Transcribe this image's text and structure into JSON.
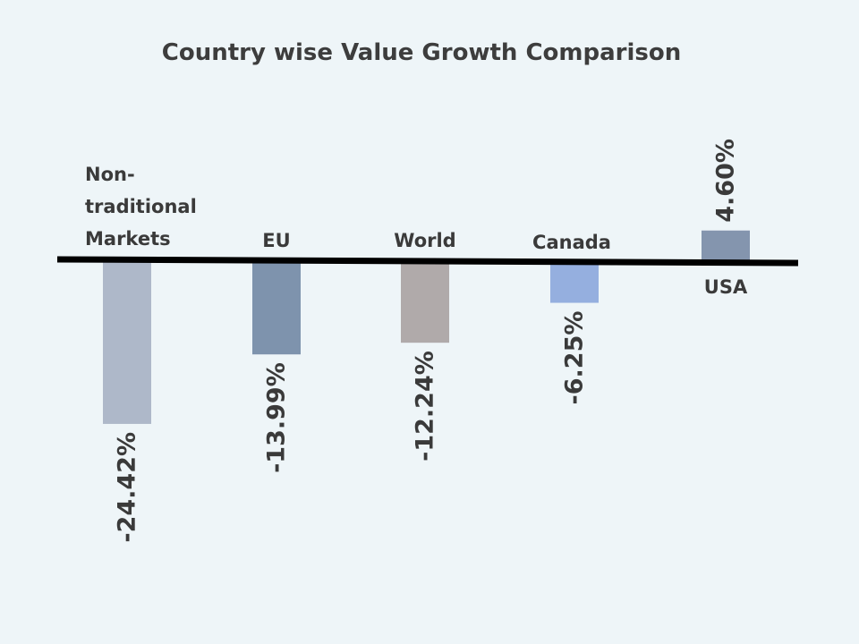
{
  "chart_data": {
    "type": "bar",
    "title": "Country wise Value Growth Comparison",
    "categories": [
      [
        "Non-",
        "traditional",
        "Markets"
      ],
      [
        "EU"
      ],
      [
        "World"
      ],
      [
        "Canada"
      ],
      [
        "USA"
      ]
    ],
    "values": [
      -24.42,
      -13.99,
      -12.24,
      -6.25,
      4.6
    ],
    "value_labels": [
      "-24.42%",
      "-13.99%",
      "-12.24%",
      "-6.25%",
      "4.60%"
    ],
    "colors": [
      "#aeb8c9",
      "#7e93ad",
      "#b0aaaa",
      "#95afdf",
      "#8495ae"
    ],
    "xlabel": "",
    "ylabel": "",
    "unit": "%",
    "grid": false,
    "legend": "none"
  }
}
